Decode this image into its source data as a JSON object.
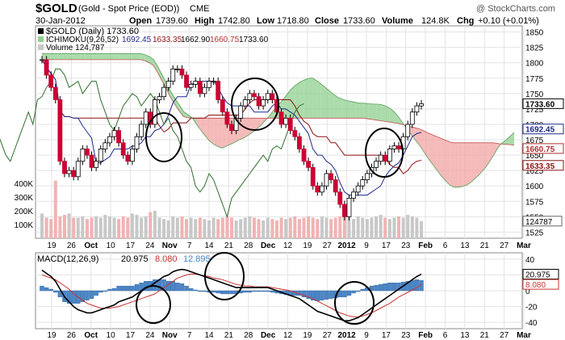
{
  "header": {
    "symbol": "$GOLD",
    "description": "(Gold - Spot Price (EOD))",
    "exchange": "CME",
    "watermark": "@ StockCharts.com",
    "date": "30-Jan-2012",
    "open_label": "Open",
    "open": "1739.60",
    "high_label": "High",
    "high": "1742.80",
    "low_label": "Low",
    "low": "1718.80",
    "close_label": "Close",
    "close": "1733.60",
    "volume_label": "Volume",
    "volume": "124.8K",
    "chg_label": "Chg",
    "chg": "+0.10 (+0.01%)"
  },
  "legend": {
    "price": "$GOLD (Daily) 1733.60",
    "ichimoku_name": "ICHIMOKU(9,26,52)",
    "ichimoku_v1": "1692.45",
    "ichimoku_v2": "1633.35",
    "ichimoku_v3": "1662.90",
    "ichimoku_v4": "1660.75",
    "ichimoku_v5": "1733.60",
    "volume": "Volume 124,787",
    "macd_name": "MACD(12,26,9)",
    "macd_v1": "20.975",
    "macd_v2": "8.080",
    "macd_v3": "12.895"
  },
  "colors": {
    "up": "#ffffff",
    "down": "#cc0033",
    "cloud_bull": "#8fcf8f",
    "cloud_bear": "#f2a3a3",
    "tenkan": "#1f2a8c",
    "kijun": "#8b1010",
    "chikou": "#2f6f2f",
    "volume_up": "#c8c8c8",
    "volume_down": "#f2b3b3",
    "macd": "#000000",
    "signal": "#cc3333",
    "histogram": "#4a86c8"
  },
  "chart_data": [
    {
      "type": "candlestick",
      "title": "$GOLD (Daily) 1733.60",
      "x_ticks": [
        "19",
        "26",
        "Oct",
        "10",
        "17",
        "24",
        "Nov",
        "7",
        "14",
        "21",
        "28",
        "Dec",
        "12",
        "19",
        "27",
        "2012",
        "9",
        "17",
        "23",
        "Feb",
        "6",
        "13",
        "21",
        "27",
        "Mar"
      ],
      "y_ticks": [
        1525,
        1550,
        1575,
        1600,
        1625,
        1650,
        1675,
        1700,
        1725,
        1750,
        1775,
        1800,
        1825,
        1850
      ],
      "ylim": [
        1515,
        1860
      ],
      "price_markers": [
        {
          "label": "1733.60",
          "value": 1733.6
        },
        {
          "label": "1692.45",
          "value": 1692.45
        },
        {
          "label": "1660.75",
          "value": 1660.75
        },
        {
          "label": "1633.35",
          "value": 1633.35
        }
      ],
      "volume_axis": {
        "ticks": [
          "100K",
          "200K",
          "300K",
          "400K"
        ],
        "label": "124787"
      },
      "closes": [
        1805,
        1780,
        1760,
        1740,
        1640,
        1620,
        1625,
        1615,
        1640,
        1660,
        1650,
        1630,
        1640,
        1660,
        1670,
        1680,
        1690,
        1670,
        1650,
        1640,
        1660,
        1680,
        1700,
        1720,
        1700,
        1740,
        1745,
        1760,
        1770,
        1790,
        1790,
        1780,
        1760,
        1765,
        1770,
        1750,
        1760,
        1770,
        1770,
        1740,
        1720,
        1700,
        1690,
        1710,
        1730,
        1740,
        1750,
        1745,
        1730,
        1740,
        1750,
        1740,
        1720,
        1700,
        1710,
        1690,
        1680,
        1660,
        1640,
        1630,
        1600,
        1590,
        1600,
        1620,
        1610,
        1590,
        1570,
        1550,
        1580,
        1590,
        1600,
        1610,
        1620,
        1630,
        1640,
        1650,
        1640,
        1660,
        1665,
        1660,
        1680,
        1700,
        1720,
        1730,
        1733.6
      ],
      "volumes": [
        180,
        150,
        140,
        420,
        160,
        170,
        180,
        150,
        150,
        160,
        140,
        150,
        160,
        150,
        170,
        160,
        150,
        140,
        160,
        150,
        180,
        170,
        150,
        160,
        190,
        200,
        150,
        140,
        130,
        160,
        150,
        160,
        140,
        150,
        140,
        150,
        140,
        130,
        150,
        140,
        150,
        160,
        150,
        130,
        140,
        150,
        160,
        150,
        140,
        130,
        150,
        140,
        130,
        150,
        140,
        150,
        160,
        140,
        150,
        160,
        150,
        140,
        160,
        150,
        140,
        150,
        160,
        170,
        150,
        140,
        160,
        150,
        140,
        150,
        160,
        170,
        150,
        140,
        150,
        160,
        150,
        170,
        160,
        150,
        125
      ]
    },
    {
      "type": "line",
      "title": "MACD(12,26,9) 20.975, 8.080, 12.895",
      "y_ticks": [
        -40,
        -20,
        0,
        20,
        40
      ],
      "ylim": [
        -48,
        48
      ],
      "x_ticks": [
        "19",
        "26",
        "Oct",
        "10",
        "17",
        "24",
        "Nov",
        "7",
        "14",
        "21",
        "28",
        "Dec",
        "12",
        "19",
        "27",
        "2012",
        "9",
        "17",
        "23",
        "Feb",
        "6",
        "13",
        "21",
        "27",
        "Mar"
      ],
      "series": [
        {
          "name": "MACD",
          "values": [
            26,
            22,
            18,
            12,
            2,
            -8,
            -14,
            -20,
            -24,
            -26,
            -28,
            -28,
            -26,
            -24,
            -22,
            -20,
            -18,
            -14,
            -12,
            -10,
            -8,
            -4,
            0,
            4,
            6,
            10,
            14,
            18,
            20,
            24,
            26,
            27,
            26,
            24,
            22,
            20,
            18,
            16,
            14,
            12,
            10,
            8,
            6,
            4,
            4,
            4,
            4,
            4,
            4,
            4,
            4,
            2,
            0,
            -2,
            -4,
            -6,
            -8,
            -10,
            -14,
            -18,
            -22,
            -26,
            -28,
            -30,
            -32,
            -34,
            -36,
            -38,
            -38,
            -36,
            -34,
            -30,
            -26,
            -22,
            -18,
            -14,
            -10,
            -6,
            -2,
            2,
            6,
            10,
            14,
            18,
            21
          ]
        },
        {
          "name": "Signal",
          "values": [
            20,
            18,
            16,
            14,
            10,
            6,
            2,
            -4,
            -8,
            -12,
            -16,
            -18,
            -20,
            -22,
            -22,
            -22,
            -21,
            -20,
            -18,
            -16,
            -14,
            -12,
            -10,
            -8,
            -6,
            -4,
            0,
            4,
            8,
            12,
            16,
            18,
            20,
            21,
            21,
            20,
            19,
            18,
            16,
            15,
            14,
            12,
            10,
            8,
            7,
            6,
            6,
            5,
            5,
            5,
            5,
            4,
            3,
            2,
            1,
            0,
            -2,
            -4,
            -6,
            -8,
            -10,
            -13,
            -16,
            -19,
            -22,
            -25,
            -28,
            -30,
            -32,
            -33,
            -33,
            -32,
            -30,
            -28,
            -25,
            -22,
            -19,
            -16,
            -12,
            -8,
            -5,
            -2,
            1,
            4,
            8
          ]
        },
        {
          "name": "Histogram",
          "values": [
            6,
            4,
            2,
            -2,
            -8,
            -14,
            -16,
            -16,
            -16,
            -14,
            -12,
            -10,
            -6,
            -2,
            0,
            2,
            3,
            6,
            6,
            6,
            6,
            8,
            10,
            12,
            12,
            14,
            14,
            14,
            12,
            12,
            10,
            9,
            6,
            3,
            1,
            0,
            -1,
            -2,
            -2,
            -3,
            -4,
            -4,
            -4,
            -4,
            -3,
            -2,
            -2,
            -1,
            -1,
            -1,
            -1,
            -2,
            -3,
            -4,
            -5,
            -6,
            -6,
            -6,
            -8,
            -10,
            -12,
            -13,
            -12,
            -11,
            -10,
            -9,
            -8,
            -8,
            -6,
            -3,
            -1,
            2,
            4,
            6,
            7,
            8,
            9,
            10,
            10,
            10,
            11,
            12,
            13,
            14,
            13
          ]
        }
      ]
    }
  ]
}
